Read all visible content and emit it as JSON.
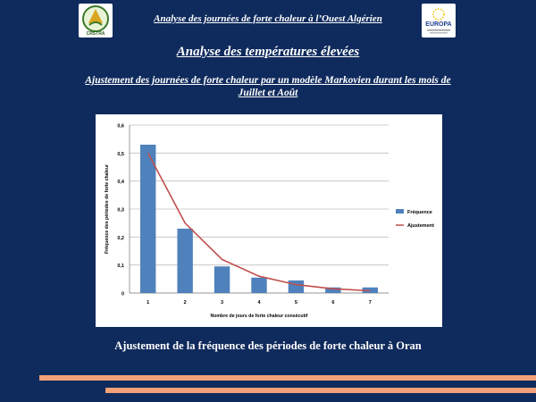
{
  "header": {
    "title": "Analyse des journées de forte chaleur à l’Ouest Algérien",
    "logo_left_text": "CRSTRA",
    "logo_right_text": "EUROPA"
  },
  "slide": {
    "title": "Analyse des températures élevées",
    "subtitle": "Ajustement des journées de forte chaleur par un modèle Markovien durant les mois de Juillet et Août",
    "caption": "Ajustement de la fréquence des périodes de forte chaleur à Oran"
  },
  "colors": {
    "background": "#0f2a5c",
    "bar": "#4f81bd",
    "line": "#c0504d",
    "stripe": "#f4a178"
  },
  "chart_data": {
    "type": "bar",
    "title": "",
    "xlabel": "Nombre de jours de forte chaleur consécutif",
    "ylabel": "Fréquence des périodes de forte chaleur",
    "categories": [
      "1",
      "2",
      "3",
      "4",
      "5",
      "6",
      "7"
    ],
    "ylim": [
      0,
      0.6
    ],
    "yticks": [
      "0",
      "0,1",
      "0,2",
      "0,3",
      "0,4",
      "0,5",
      "0,6"
    ],
    "grid": true,
    "legend_position": "right",
    "series": [
      {
        "name": "Fréquence",
        "kind": "bar",
        "values": [
          0.53,
          0.23,
          0.095,
          0.055,
          0.045,
          0.02,
          0.02
        ]
      },
      {
        "name": "Ajustement",
        "kind": "line",
        "values": [
          0.5,
          0.25,
          0.12,
          0.06,
          0.03,
          0.015,
          0.008
        ]
      }
    ]
  }
}
